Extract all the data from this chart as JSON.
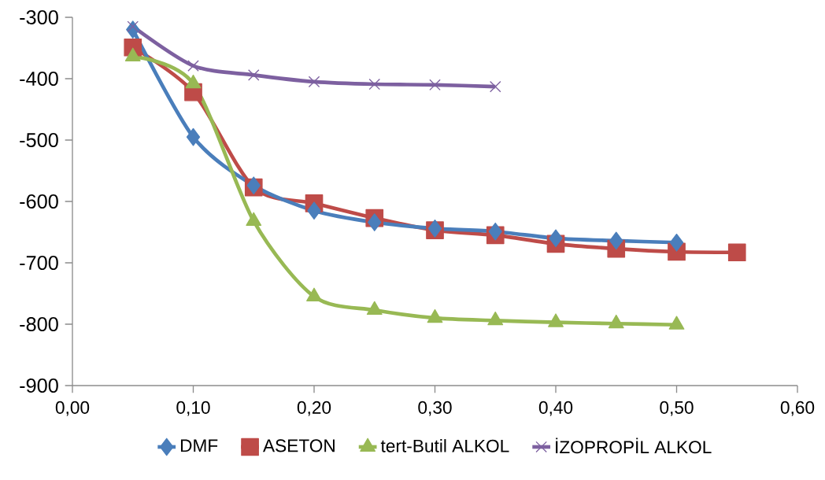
{
  "chart_data": {
    "type": "line",
    "x": [
      0.05,
      0.1,
      0.15,
      0.2,
      0.25,
      0.3,
      0.35,
      0.4,
      0.45,
      0.5,
      0.55
    ],
    "series": [
      {
        "name": "DMF",
        "color": "#4a7ebb",
        "marker": "diamond",
        "values": [
          -320,
          -495,
          -574,
          -615,
          -634,
          -644,
          -649,
          -660,
          -664,
          -667,
          null
        ]
      },
      {
        "name": "ASETON",
        "color": "#be4b48",
        "marker": "square",
        "values": [
          -349,
          -422,
          -577,
          -603,
          -627,
          -647,
          -655,
          -669,
          -677,
          -682,
          -683
        ]
      },
      {
        "name": "tert-Butil ALKOL",
        "color": "#98b954",
        "marker": "triangle",
        "values": [
          -364,
          -408,
          -632,
          -755,
          -777,
          -790,
          -794,
          -797,
          -799,
          -801,
          null
        ]
      },
      {
        "name": "İZOPROPİL ALKOL",
        "color": "#7d60a0",
        "marker": "cross",
        "values": [
          -315,
          -379,
          -394,
          -405,
          -409,
          -410,
          -413,
          null,
          null,
          null,
          null
        ]
      }
    ],
    "xlim": [
      0,
      0.6
    ],
    "xticks": [
      {
        "value": 0,
        "label": "0,00"
      },
      {
        "value": 0.1,
        "label": "0,10"
      },
      {
        "value": 0.2,
        "label": "0,20"
      },
      {
        "value": 0.3,
        "label": "0,30"
      },
      {
        "value": 0.4,
        "label": "0,40"
      },
      {
        "value": 0.5,
        "label": "0,50"
      },
      {
        "value": 0.6,
        "label": "0,60"
      }
    ],
    "ylim": [
      -900,
      -300
    ],
    "yticks": [
      -900,
      -800,
      -700,
      -600,
      -500,
      -400,
      -300
    ],
    "grid": false,
    "legend": "bottom",
    "line_style": "solid"
  }
}
